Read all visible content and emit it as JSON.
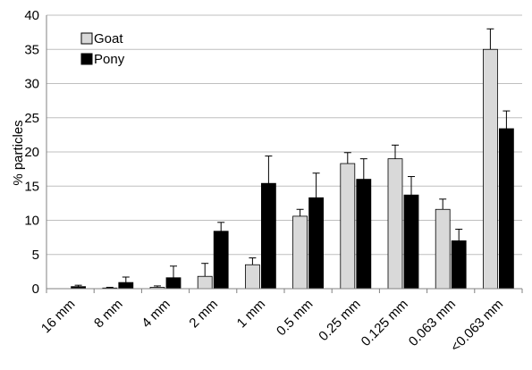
{
  "chart_data": {
    "type": "bar",
    "title": "",
    "xlabel": "",
    "ylabel": "% particles",
    "ylim": [
      0,
      40
    ],
    "yticks": [
      0,
      5,
      10,
      15,
      20,
      25,
      30,
      35,
      40
    ],
    "grid": true,
    "legend_position": "top-left",
    "categories": [
      "16 mm",
      "8 mm",
      "4 mm",
      "2 mm",
      "1 mm",
      "0.5 mm",
      "0.25 mm",
      "0.125 mm",
      "0.063 mm",
      "<0.063 mm"
    ],
    "series": [
      {
        "name": "Goat",
        "color": "#d9d9d9",
        "values": [
          0.0,
          0.1,
          0.2,
          1.8,
          3.5,
          10.6,
          18.3,
          19.0,
          11.6,
          35.0
        ],
        "errors": [
          0.0,
          0.1,
          0.2,
          1.9,
          1.0,
          1.0,
          1.6,
          2.0,
          1.5,
          3.0
        ]
      },
      {
        "name": "Pony",
        "color": "#000000",
        "values": [
          0.3,
          0.9,
          1.6,
          8.4,
          15.4,
          13.3,
          16.0,
          13.7,
          7.0,
          23.4
        ],
        "errors": [
          0.2,
          0.8,
          1.7,
          1.3,
          4.0,
          3.6,
          3.0,
          2.7,
          1.7,
          2.6
        ]
      }
    ]
  }
}
